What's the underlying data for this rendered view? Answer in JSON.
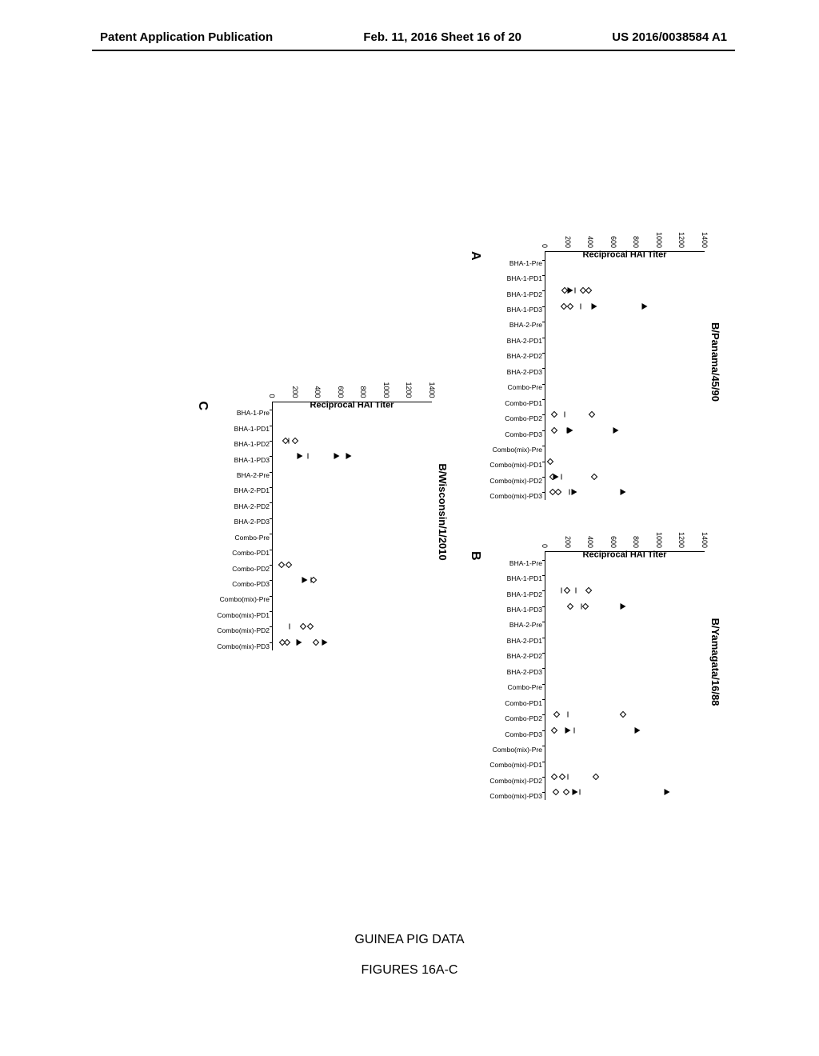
{
  "header": {
    "left": "Patent Application Publication",
    "center": "Feb. 11, 2016  Sheet 16 of 20",
    "right": "US 2016/0038584 A1"
  },
  "caption": {
    "line1": "GUINEA PIG DATA",
    "line2": "FIGURES 16A-C"
  },
  "common": {
    "ylabel": "Reciprocal HAI Titer",
    "ylim": [
      0,
      1400
    ],
    "ytick_step": 200,
    "yticks": [
      0,
      200,
      400,
      600,
      800,
      1000,
      1200,
      1400
    ],
    "categories": [
      "BHA-1-Pre",
      "BHA-1-PD1",
      "BHA-1-PD2",
      "BHA-1-PD3",
      "BHA-2-Pre",
      "BHA-2-PD1",
      "BHA-2-PD2",
      "BHA-2-PD3",
      "Combo-Pre",
      "Combo-PD1",
      "Combo-PD2",
      "Combo-PD3",
      "Combo(mix)-Pre",
      "Combo(mix)-PD1",
      "Combo(mix)-PD2",
      "Combo(mix)-PD3"
    ],
    "label_fontsize": 11,
    "tick_fontsize": 9,
    "xcat_fontsize": 8.5,
    "background_color": "#ffffff",
    "axis_color": "#000000",
    "marker_outline": "#000000"
  },
  "charts": [
    {
      "panel": "A",
      "title": "B/Panama/45/90",
      "type": "scatter",
      "points": [
        {
          "cat": "BHA-1-PD2",
          "val": 380,
          "type": "diamond"
        },
        {
          "cat": "BHA-1-PD2",
          "val": 330,
          "type": "diamond"
        },
        {
          "cat": "BHA-1-PD2",
          "val": 170,
          "type": "diamond"
        },
        {
          "cat": "BHA-1-PD2",
          "val": 260,
          "type": "bar"
        },
        {
          "cat": "BHA-1-PD2",
          "val": 220,
          "type": "triangle"
        },
        {
          "cat": "BHA-1-PD3",
          "val": 870,
          "type": "triangle"
        },
        {
          "cat": "BHA-1-PD3",
          "val": 430,
          "type": "triangle"
        },
        {
          "cat": "BHA-1-PD3",
          "val": 220,
          "type": "diamond"
        },
        {
          "cat": "BHA-1-PD3",
          "val": 160,
          "type": "diamond"
        },
        {
          "cat": "BHA-1-PD3",
          "val": 310,
          "type": "bar"
        },
        {
          "cat": "Combo-PD2",
          "val": 410,
          "type": "diamond"
        },
        {
          "cat": "Combo-PD2",
          "val": 80,
          "type": "diamond"
        },
        {
          "cat": "Combo-PD2",
          "val": 170,
          "type": "bar"
        },
        {
          "cat": "Combo-PD3",
          "val": 620,
          "type": "triangle"
        },
        {
          "cat": "Combo-PD3",
          "val": 220,
          "type": "triangle"
        },
        {
          "cat": "Combo-PD3",
          "val": 80,
          "type": "diamond"
        },
        {
          "cat": "Combo-PD3",
          "val": 190,
          "type": "bar"
        },
        {
          "cat": "Combo(mix)-PD1",
          "val": 40,
          "type": "diamond"
        },
        {
          "cat": "Combo(mix)-PD2",
          "val": 430,
          "type": "diamond"
        },
        {
          "cat": "Combo(mix)-PD2",
          "val": 60,
          "type": "diamond"
        },
        {
          "cat": "Combo(mix)-PD2",
          "val": 140,
          "type": "bar"
        },
        {
          "cat": "Combo(mix)-PD2",
          "val": 90,
          "type": "triangle"
        },
        {
          "cat": "Combo(mix)-PD3",
          "val": 680,
          "type": "triangle"
        },
        {
          "cat": "Combo(mix)-PD3",
          "val": 250,
          "type": "triangle"
        },
        {
          "cat": "Combo(mix)-PD3",
          "val": 110,
          "type": "diamond"
        },
        {
          "cat": "Combo(mix)-PD3",
          "val": 60,
          "type": "diamond"
        },
        {
          "cat": "Combo(mix)-PD3",
          "val": 210,
          "type": "bar"
        }
      ]
    },
    {
      "panel": "B",
      "title": "B/Yamagata/16/88",
      "type": "scatter",
      "points": [
        {
          "cat": "BHA-1-PD2",
          "val": 190,
          "type": "diamond"
        },
        {
          "cat": "BHA-1-PD2",
          "val": 140,
          "type": "bar"
        },
        {
          "cat": "BHA-1-PD2",
          "val": 380,
          "type": "diamond"
        },
        {
          "cat": "BHA-1-PD2",
          "val": 270,
          "type": "bar"
        },
        {
          "cat": "BHA-1-PD3",
          "val": 680,
          "type": "triangle"
        },
        {
          "cat": "BHA-1-PD3",
          "val": 350,
          "type": "diamond"
        },
        {
          "cat": "BHA-1-PD3",
          "val": 220,
          "type": "diamond"
        },
        {
          "cat": "BHA-1-PD3",
          "val": 315,
          "type": "bar"
        },
        {
          "cat": "Combo-PD2",
          "val": 680,
          "type": "diamond"
        },
        {
          "cat": "Combo-PD2",
          "val": 100,
          "type": "diamond"
        },
        {
          "cat": "Combo-PD2",
          "val": 200,
          "type": "bar"
        },
        {
          "cat": "Combo-PD3",
          "val": 810,
          "type": "triangle"
        },
        {
          "cat": "Combo-PD3",
          "val": 200,
          "type": "triangle"
        },
        {
          "cat": "Combo-PD3",
          "val": 80,
          "type": "diamond"
        },
        {
          "cat": "Combo-PD3",
          "val": 250,
          "type": "bar"
        },
        {
          "cat": "Combo(mix)-PD2",
          "val": 440,
          "type": "diamond"
        },
        {
          "cat": "Combo(mix)-PD2",
          "val": 150,
          "type": "diamond"
        },
        {
          "cat": "Combo(mix)-PD2",
          "val": 80,
          "type": "diamond"
        },
        {
          "cat": "Combo(mix)-PD2",
          "val": 195,
          "type": "bar"
        },
        {
          "cat": "Combo(mix)-PD3",
          "val": 1070,
          "type": "triangle"
        },
        {
          "cat": "Combo(mix)-PD3",
          "val": 260,
          "type": "triangle"
        },
        {
          "cat": "Combo(mix)-PD3",
          "val": 180,
          "type": "diamond"
        },
        {
          "cat": "Combo(mix)-PD3",
          "val": 90,
          "type": "diamond"
        },
        {
          "cat": "Combo(mix)-PD3",
          "val": 300,
          "type": "bar"
        }
      ]
    },
    {
      "panel": "C",
      "title": "B/Wisconsin/1/2010",
      "type": "scatter",
      "points": [
        {
          "cat": "BHA-1-PD2",
          "val": 200,
          "type": "diamond"
        },
        {
          "cat": "BHA-1-PD2",
          "val": 110,
          "type": "diamond"
        },
        {
          "cat": "BHA-1-PD2",
          "val": 140,
          "type": "bar"
        },
        {
          "cat": "BHA-1-PD3",
          "val": 670,
          "type": "triangle"
        },
        {
          "cat": "BHA-1-PD3",
          "val": 560,
          "type": "triangle"
        },
        {
          "cat": "BHA-1-PD3",
          "val": 240,
          "type": "triangle"
        },
        {
          "cat": "BHA-1-PD3",
          "val": 310,
          "type": "bar"
        },
        {
          "cat": "Combo-PD2",
          "val": 140,
          "type": "diamond"
        },
        {
          "cat": "Combo-PD2",
          "val": 80,
          "type": "diamond"
        },
        {
          "cat": "Combo-PD3",
          "val": 360,
          "type": "diamond"
        },
        {
          "cat": "Combo-PD3",
          "val": 280,
          "type": "triangle"
        },
        {
          "cat": "Combo-PD3",
          "val": 340,
          "type": "bar"
        },
        {
          "cat": "Combo(mix)-PD2",
          "val": 330,
          "type": "diamond"
        },
        {
          "cat": "Combo(mix)-PD2",
          "val": 270,
          "type": "diamond"
        },
        {
          "cat": "Combo(mix)-PD2",
          "val": 150,
          "type": "bar"
        },
        {
          "cat": "Combo(mix)-PD3",
          "val": 460,
          "type": "triangle"
        },
        {
          "cat": "Combo(mix)-PD3",
          "val": 380,
          "type": "diamond"
        },
        {
          "cat": "Combo(mix)-PD3",
          "val": 230,
          "type": "triangle"
        },
        {
          "cat": "Combo(mix)-PD3",
          "val": 130,
          "type": "diamond"
        },
        {
          "cat": "Combo(mix)-PD3",
          "val": 85,
          "type": "diamond"
        },
        {
          "cat": "Combo(mix)-PD3",
          "val": 220,
          "type": "bar"
        }
      ]
    }
  ]
}
